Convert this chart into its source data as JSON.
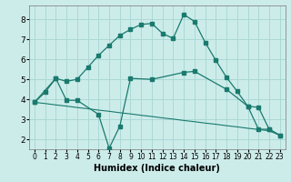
{
  "xlabel": "Humidex (Indice chaleur)",
  "bg_color": "#ccecea",
  "grid_color": "#aad8d5",
  "line_color": "#1a7a6e",
  "xlim": [
    -0.5,
    23.5
  ],
  "ylim": [
    1.5,
    8.7
  ],
  "xticks": [
    0,
    1,
    2,
    3,
    4,
    5,
    6,
    7,
    8,
    9,
    10,
    11,
    12,
    13,
    14,
    15,
    16,
    17,
    18,
    19,
    20,
    21,
    22,
    23
  ],
  "yticks": [
    2,
    3,
    4,
    5,
    6,
    7,
    8
  ],
  "line1_x": [
    0,
    1,
    2,
    3,
    4,
    5,
    6,
    7,
    8,
    9,
    10,
    11,
    12,
    13,
    14,
    15,
    16,
    17,
    18,
    19,
    20,
    21,
    22,
    23
  ],
  "line1_y": [
    3.85,
    4.35,
    5.05,
    4.9,
    5.0,
    5.6,
    6.2,
    6.7,
    7.2,
    7.5,
    7.75,
    7.8,
    7.3,
    7.05,
    8.25,
    7.9,
    6.85,
    5.95,
    5.1,
    4.4,
    3.65,
    3.6,
    2.5,
    2.2
  ],
  "line2_x": [
    0,
    2,
    3,
    4,
    6,
    7,
    8,
    9,
    11,
    14,
    15,
    18,
    20,
    21,
    22,
    23
  ],
  "line2_y": [
    3.85,
    5.05,
    3.95,
    3.95,
    3.25,
    1.55,
    2.65,
    5.05,
    5.0,
    5.35,
    5.4,
    4.5,
    3.65,
    2.5,
    2.5,
    2.2
  ],
  "line3_x": [
    0,
    1,
    2,
    3,
    4,
    5,
    6,
    7,
    8,
    9,
    10,
    11,
    12,
    13,
    14,
    15,
    16,
    17,
    18,
    19,
    20,
    21,
    22,
    23
  ],
  "line3_y": [
    3.85,
    3.79,
    3.72,
    3.66,
    3.59,
    3.53,
    3.46,
    3.4,
    3.33,
    3.27,
    3.2,
    3.14,
    3.07,
    3.01,
    2.94,
    2.88,
    2.81,
    2.75,
    2.68,
    2.62,
    2.55,
    2.49,
    2.42,
    2.2
  ]
}
